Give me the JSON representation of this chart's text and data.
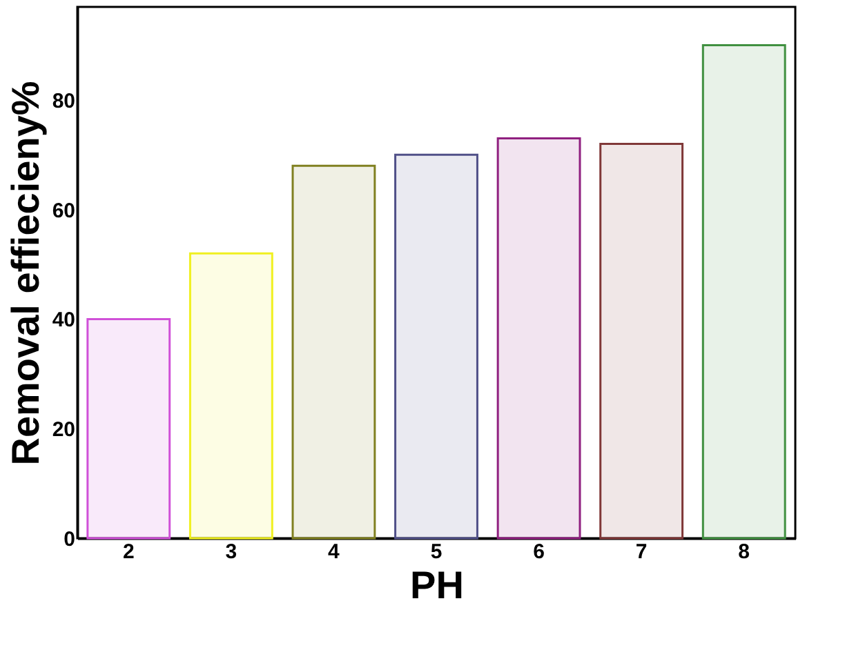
{
  "chart_data": {
    "type": "bar",
    "xlabel": "PH",
    "ylabel": "Removal effiecieny%",
    "categories": [
      "2",
      "3",
      "4",
      "5",
      "6",
      "7",
      "8"
    ],
    "values": [
      40,
      52,
      68,
      70,
      73,
      72,
      90
    ],
    "colors": [
      "#d050d8",
      "#f0f020",
      "#808020",
      "#505088",
      "#902080",
      "#803838",
      "#409040"
    ],
    "ylim": [
      0,
      97
    ],
    "yticks": [
      0,
      20,
      40,
      60,
      80
    ],
    "grid": false
  }
}
